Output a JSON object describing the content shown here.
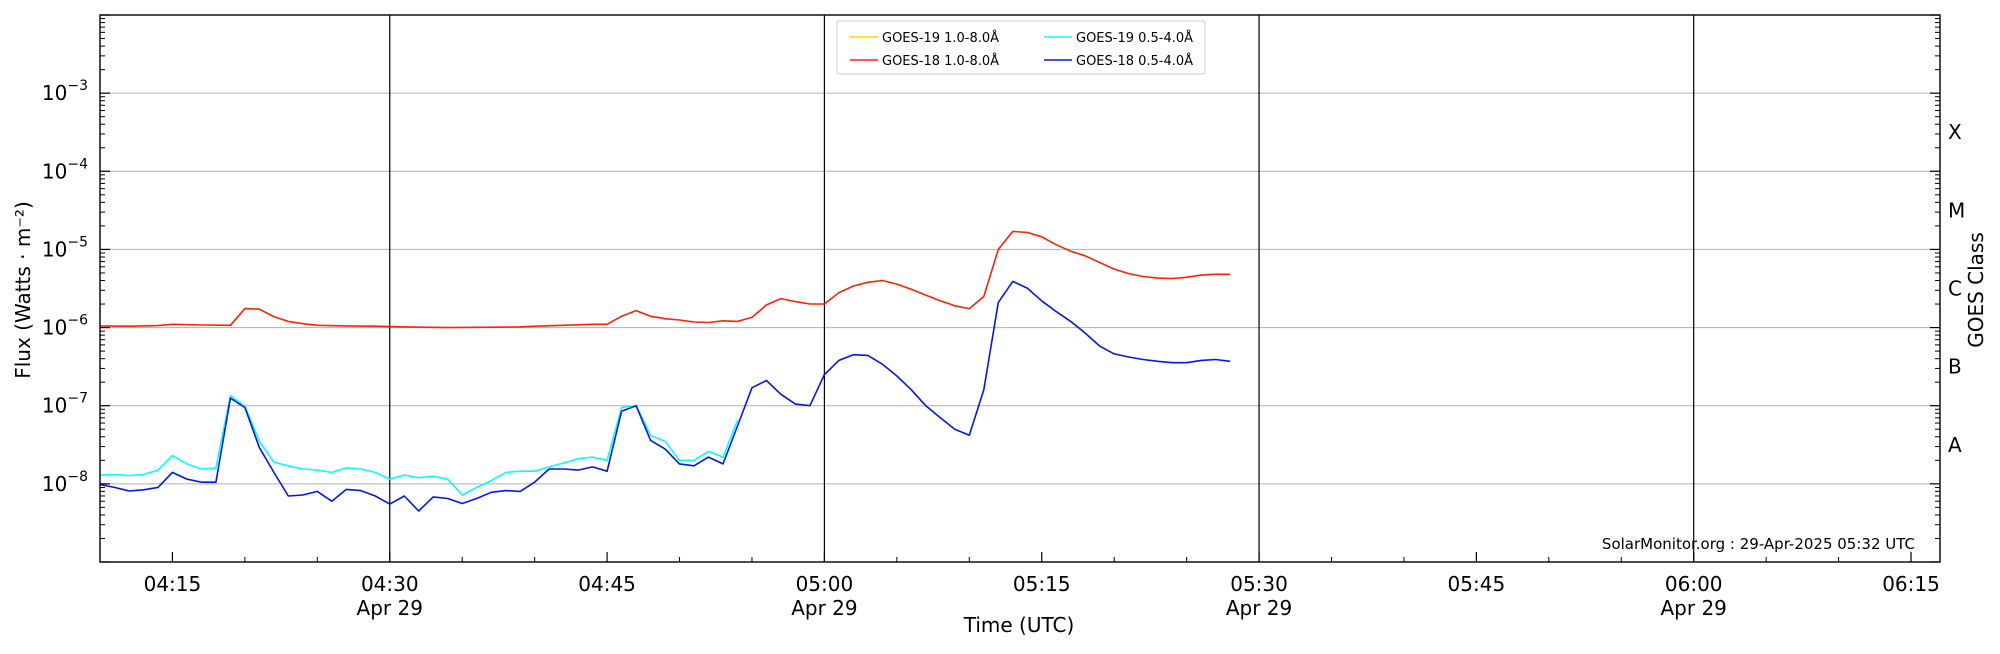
{
  "chart_data": {
    "type": "line",
    "title": "",
    "xlabel": "Time (UTC)",
    "ylabel": "Flux (Watts · m⁻²)",
    "y2label": "GOES Class",
    "yscale": "log",
    "xlim": [
      "04:10",
      "06:17"
    ],
    "ylim": [
      1e-09,
      0.01
    ],
    "grid": "horizontal at decades",
    "legend_position": "top-center",
    "stamp": "SolarMonitor.org : 29-Apr-2025 05:32 UTC",
    "x_ticks": [
      {
        "time": "04:15",
        "label": "04:15",
        "date": ""
      },
      {
        "time": "04:30",
        "label": "04:30",
        "date": "Apr 29"
      },
      {
        "time": "04:45",
        "label": "04:45",
        "date": ""
      },
      {
        "time": "05:00",
        "label": "05:00",
        "date": "Apr 29"
      },
      {
        "time": "05:15",
        "label": "05:15",
        "date": ""
      },
      {
        "time": "05:30",
        "label": "05:30",
        "date": "Apr 29"
      },
      {
        "time": "05:45",
        "label": "05:45",
        "date": ""
      },
      {
        "time": "06:00",
        "label": "06:00",
        "date": "Apr 29"
      },
      {
        "time": "06:15",
        "label": "06:15",
        "date": ""
      }
    ],
    "vlines": [
      "04:30",
      "05:00",
      "05:30",
      "06:00"
    ],
    "y_ticks": [
      {
        "value": 1e-08,
        "mant": "10",
        "exp": "−8"
      },
      {
        "value": 1e-07,
        "mant": "10",
        "exp": "−7"
      },
      {
        "value": 1e-06,
        "mant": "10",
        "exp": "−6"
      },
      {
        "value": 1e-05,
        "mant": "10",
        "exp": "−5"
      },
      {
        "value": 0.0001,
        "mant": "10",
        "exp": "−4"
      },
      {
        "value": 0.001,
        "mant": "10",
        "exp": "−3"
      }
    ],
    "goes_classes": [
      {
        "label": "A",
        "value": 3.16e-08
      },
      {
        "label": "B",
        "value": 3.16e-07
      },
      {
        "label": "C",
        "value": 3.16e-06
      },
      {
        "label": "M",
        "value": 3.16e-05
      },
      {
        "label": "X",
        "value": 0.000316
      }
    ],
    "series": [
      {
        "name": "GOES-19 1.0-8.0Å",
        "color": "#FFD700",
        "points": []
      },
      {
        "name": "GOES-18 1.0-8.0Å",
        "color": "#FF2200",
        "points": [
          [
            "04:10",
            1.05e-06
          ],
          [
            "04:12",
            1.04e-06
          ],
          [
            "04:14",
            1.06e-06
          ],
          [
            "04:15",
            1.1e-06
          ],
          [
            "04:17",
            1.08e-06
          ],
          [
            "04:19",
            1.07e-06
          ],
          [
            "04:20",
            1.75e-06
          ],
          [
            "04:21",
            1.72e-06
          ],
          [
            "04:22",
            1.38e-06
          ],
          [
            "04:23",
            1.2e-06
          ],
          [
            "04:24",
            1.12e-06
          ],
          [
            "04:25",
            1.07e-06
          ],
          [
            "04:27",
            1.05e-06
          ],
          [
            "04:29",
            1.04e-06
          ],
          [
            "04:31",
            1.02e-06
          ],
          [
            "04:34",
            1e-06
          ],
          [
            "04:37",
            1.01e-06
          ],
          [
            "04:39",
            1.02e-06
          ],
          [
            "04:40",
            1.04e-06
          ],
          [
            "04:42",
            1.07e-06
          ],
          [
            "04:44",
            1.1e-06
          ],
          [
            "04:45",
            1.1e-06
          ],
          [
            "04:46",
            1.4e-06
          ],
          [
            "04:47",
            1.65e-06
          ],
          [
            "04:48",
            1.4e-06
          ],
          [
            "04:49",
            1.3e-06
          ],
          [
            "04:50",
            1.25e-06
          ],
          [
            "04:51",
            1.18e-06
          ],
          [
            "04:52",
            1.16e-06
          ],
          [
            "04:53",
            1.22e-06
          ],
          [
            "04:54",
            1.2e-06
          ],
          [
            "04:55",
            1.35e-06
          ],
          [
            "04:56",
            1.95e-06
          ],
          [
            "04:57",
            2.35e-06
          ],
          [
            "04:58",
            2.15e-06
          ],
          [
            "04:59",
            2e-06
          ],
          [
            "05:00",
            2e-06
          ],
          [
            "05:01",
            2.8e-06
          ],
          [
            "05:02",
            3.4e-06
          ],
          [
            "05:03",
            3.8e-06
          ],
          [
            "05:04",
            4e-06
          ],
          [
            "05:05",
            3.6e-06
          ],
          [
            "05:06",
            3.1e-06
          ],
          [
            "05:07",
            2.6e-06
          ],
          [
            "05:08",
            2.2e-06
          ],
          [
            "05:09",
            1.9e-06
          ],
          [
            "05:10",
            1.75e-06
          ],
          [
            "05:11",
            2.5e-06
          ],
          [
            "05:12",
            1e-05
          ],
          [
            "05:13",
            1.7e-05
          ],
          [
            "05:14",
            1.65e-05
          ],
          [
            "05:15",
            1.45e-05
          ],
          [
            "05:16",
            1.15e-05
          ],
          [
            "05:17",
            9.5e-06
          ],
          [
            "05:18",
            8.3e-06
          ],
          [
            "05:19",
            6.8e-06
          ],
          [
            "05:20",
            5.6e-06
          ],
          [
            "05:21",
            4.9e-06
          ],
          [
            "05:22",
            4.5e-06
          ],
          [
            "05:23",
            4.3e-06
          ],
          [
            "05:24",
            4.25e-06
          ],
          [
            "05:25",
            4.4e-06
          ],
          [
            "05:26",
            4.7e-06
          ],
          [
            "05:27",
            4.8e-06
          ],
          [
            "05:28",
            4.8e-06
          ]
        ]
      },
      {
        "name": "GOES-19 0.5-4.0Å",
        "color": "#00FFFF",
        "points": [
          [
            "04:10",
            1.3e-08
          ],
          [
            "04:11",
            1.32e-08
          ],
          [
            "04:12",
            1.28e-08
          ],
          [
            "04:13",
            1.32e-08
          ],
          [
            "04:14",
            1.5e-08
          ],
          [
            "04:15",
            2.3e-08
          ],
          [
            "04:16",
            1.8e-08
          ],
          [
            "04:17",
            1.55e-08
          ],
          [
            "04:18",
            1.6e-08
          ],
          [
            "04:19",
            1.35e-07
          ],
          [
            "04:20",
            9.8e-08
          ],
          [
            "04:21",
            3.5e-08
          ],
          [
            "04:22",
            1.9e-08
          ],
          [
            "04:23",
            1.7e-08
          ],
          [
            "04:24",
            1.55e-08
          ],
          [
            "04:25",
            1.5e-08
          ],
          [
            "04:26",
            1.4e-08
          ],
          [
            "04:27",
            1.6e-08
          ],
          [
            "04:28",
            1.55e-08
          ],
          [
            "04:29",
            1.4e-08
          ],
          [
            "04:30",
            1.15e-08
          ],
          [
            "04:31",
            1.3e-08
          ],
          [
            "04:32",
            1.2e-08
          ],
          [
            "04:33",
            1.25e-08
          ],
          [
            "04:34",
            1.15e-08
          ],
          [
            "04:35",
            7.2e-09
          ],
          [
            "04:36",
            9e-09
          ],
          [
            "04:37",
            1.1e-08
          ],
          [
            "04:38",
            1.4e-08
          ],
          [
            "04:39",
            1.45e-08
          ],
          [
            "04:40",
            1.45e-08
          ],
          [
            "04:41",
            1.65e-08
          ],
          [
            "04:42",
            1.85e-08
          ],
          [
            "04:43",
            2.1e-08
          ],
          [
            "04:44",
            2.2e-08
          ],
          [
            "04:45",
            2e-08
          ],
          [
            "04:46",
            9.5e-08
          ],
          [
            "04:47",
            1e-07
          ],
          [
            "04:48",
            4.2e-08
          ],
          [
            "04:49",
            3.5e-08
          ],
          [
            "04:50",
            2e-08
          ],
          [
            "04:51",
            2e-08
          ],
          [
            "04:52",
            2.6e-08
          ],
          [
            "04:53",
            2.2e-08
          ],
          [
            "04:54",
            6.5e-08
          ]
        ]
      },
      {
        "name": "GOES-18 0.5-4.0Å",
        "color": "#0018F0",
        "points": [
          [
            "04:10",
            9.8e-09
          ],
          [
            "04:11",
            9e-09
          ],
          [
            "04:12",
            8.1e-09
          ],
          [
            "04:13",
            8.4e-09
          ],
          [
            "04:14",
            9e-09
          ],
          [
            "04:15",
            1.4e-08
          ],
          [
            "04:16",
            1.15e-08
          ],
          [
            "04:17",
            1.05e-08
          ],
          [
            "04:18",
            1.05e-08
          ],
          [
            "04:19",
            1.25e-07
          ],
          [
            "04:20",
            9.5e-08
          ],
          [
            "04:21",
            2.9e-08
          ],
          [
            "04:22",
            1.4e-08
          ],
          [
            "04:23",
            7e-09
          ],
          [
            "04:24",
            7.2e-09
          ],
          [
            "04:25",
            8e-09
          ],
          [
            "04:26",
            6e-09
          ],
          [
            "04:27",
            8.5e-09
          ],
          [
            "04:28",
            8.2e-09
          ],
          [
            "04:29",
            7e-09
          ],
          [
            "04:30",
            5.5e-09
          ],
          [
            "04:31",
            7e-09
          ],
          [
            "04:32",
            4.5e-09
          ],
          [
            "04:33",
            6.8e-09
          ],
          [
            "04:34",
            6.5e-09
          ],
          [
            "04:35",
            5.6e-09
          ],
          [
            "04:36",
            6.5e-09
          ],
          [
            "04:37",
            7.8e-09
          ],
          [
            "04:38",
            8.2e-09
          ],
          [
            "04:39",
            8e-09
          ],
          [
            "04:40",
            1.05e-08
          ],
          [
            "04:41",
            1.55e-08
          ],
          [
            "04:42",
            1.55e-08
          ],
          [
            "04:43",
            1.5e-08
          ],
          [
            "04:44",
            1.65e-08
          ],
          [
            "04:45",
            1.45e-08
          ],
          [
            "04:46",
            8.5e-08
          ],
          [
            "04:47",
            1e-07
          ],
          [
            "04:48",
            3.6e-08
          ],
          [
            "04:49",
            2.8e-08
          ],
          [
            "04:50",
            1.8e-08
          ],
          [
            "04:51",
            1.7e-08
          ],
          [
            "04:52",
            2.2e-08
          ],
          [
            "04:53",
            1.8e-08
          ],
          [
            "04:54",
            5.5e-08
          ],
          [
            "04:55",
            1.7e-07
          ],
          [
            "04:56",
            2.1e-07
          ],
          [
            "04:57",
            1.4e-07
          ],
          [
            "04:58",
            1.05e-07
          ],
          [
            "04:59",
            1e-07
          ],
          [
            "05:00",
            2.5e-07
          ],
          [
            "05:01",
            3.8e-07
          ],
          [
            "05:02",
            4.5e-07
          ],
          [
            "05:03",
            4.4e-07
          ],
          [
            "05:04",
            3.4e-07
          ],
          [
            "05:05",
            2.4e-07
          ],
          [
            "05:06",
            1.6e-07
          ],
          [
            "05:07",
            1e-07
          ],
          [
            "05:08",
            7e-08
          ],
          [
            "05:09",
            5e-08
          ],
          [
            "05:10",
            4.2e-08
          ],
          [
            "05:11",
            1.6e-07
          ],
          [
            "05:12",
            2.1e-06
          ],
          [
            "05:13",
            3.9e-06
          ],
          [
            "05:14",
            3.2e-06
          ],
          [
            "05:15",
            2.2e-06
          ],
          [
            "05:16",
            1.6e-06
          ],
          [
            "05:17",
            1.2e-06
          ],
          [
            "05:18",
            8.5e-07
          ],
          [
            "05:19",
            5.8e-07
          ],
          [
            "05:20",
            4.6e-07
          ],
          [
            "05:21",
            4.2e-07
          ],
          [
            "05:22",
            3.9e-07
          ],
          [
            "05:23",
            3.7e-07
          ],
          [
            "05:24",
            3.55e-07
          ],
          [
            "05:25",
            3.55e-07
          ],
          [
            "05:26",
            3.8e-07
          ],
          [
            "05:27",
            3.9e-07
          ],
          [
            "05:28",
            3.7e-07
          ]
        ]
      }
    ]
  }
}
